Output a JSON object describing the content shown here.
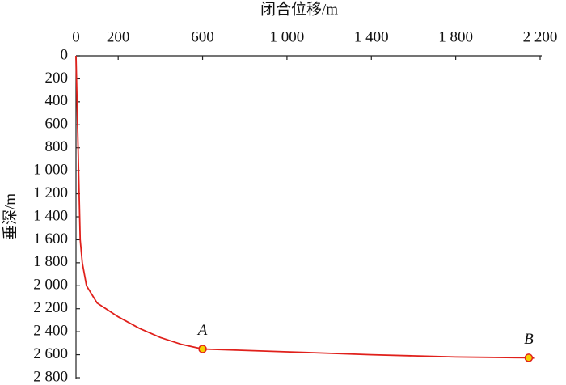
{
  "chart_data": {
    "type": "line",
    "x_label": "闭合位移/m",
    "y_label": "垂深/m",
    "x": [
      0,
      5,
      10,
      15,
      20,
      30,
      50,
      100,
      200,
      300,
      400,
      500,
      600,
      1000,
      1400,
      1800,
      2146,
      2175
    ],
    "values": [
      0,
      400,
      800,
      1200,
      1600,
      1800,
      2000,
      2150,
      2270,
      2370,
      2450,
      2510,
      2550,
      2575,
      2600,
      2620,
      2627,
      2630
    ],
    "color": "#e0201b",
    "xlim": [
      0,
      2200
    ],
    "xticks": [
      0,
      200,
      600,
      {
        "value": 1000,
        "label": "1 000"
      },
      {
        "value": 1400,
        "label": "1 400"
      },
      {
        "value": 1800,
        "label": "1 800"
      },
      {
        "value": 2200,
        "label": "2 200"
      }
    ],
    "ylim": [
      0,
      2800
    ],
    "y_inverted": true,
    "yticks": [
      0,
      200,
      400,
      600,
      800,
      {
        "value": 1000,
        "label": "1 000"
      },
      {
        "value": 1200,
        "label": "1 200"
      },
      {
        "value": 1400,
        "label": "1 400"
      },
      {
        "value": 1600,
        "label": "1 600"
      },
      {
        "value": 1800,
        "label": "1 800"
      },
      {
        "value": 2000,
        "label": "2 000"
      },
      {
        "value": 2200,
        "label": "2 200"
      },
      {
        "value": 2400,
        "label": "2 400"
      },
      {
        "value": 2600,
        "label": "2 600"
      },
      {
        "value": 2800,
        "label": "2 800"
      }
    ],
    "annotations": [
      {
        "text": "A",
        "x": 600,
        "y": 2550
      },
      {
        "text": "B",
        "x": 2146,
        "y": 2627
      }
    ],
    "marker_color": "#f5d000"
  }
}
